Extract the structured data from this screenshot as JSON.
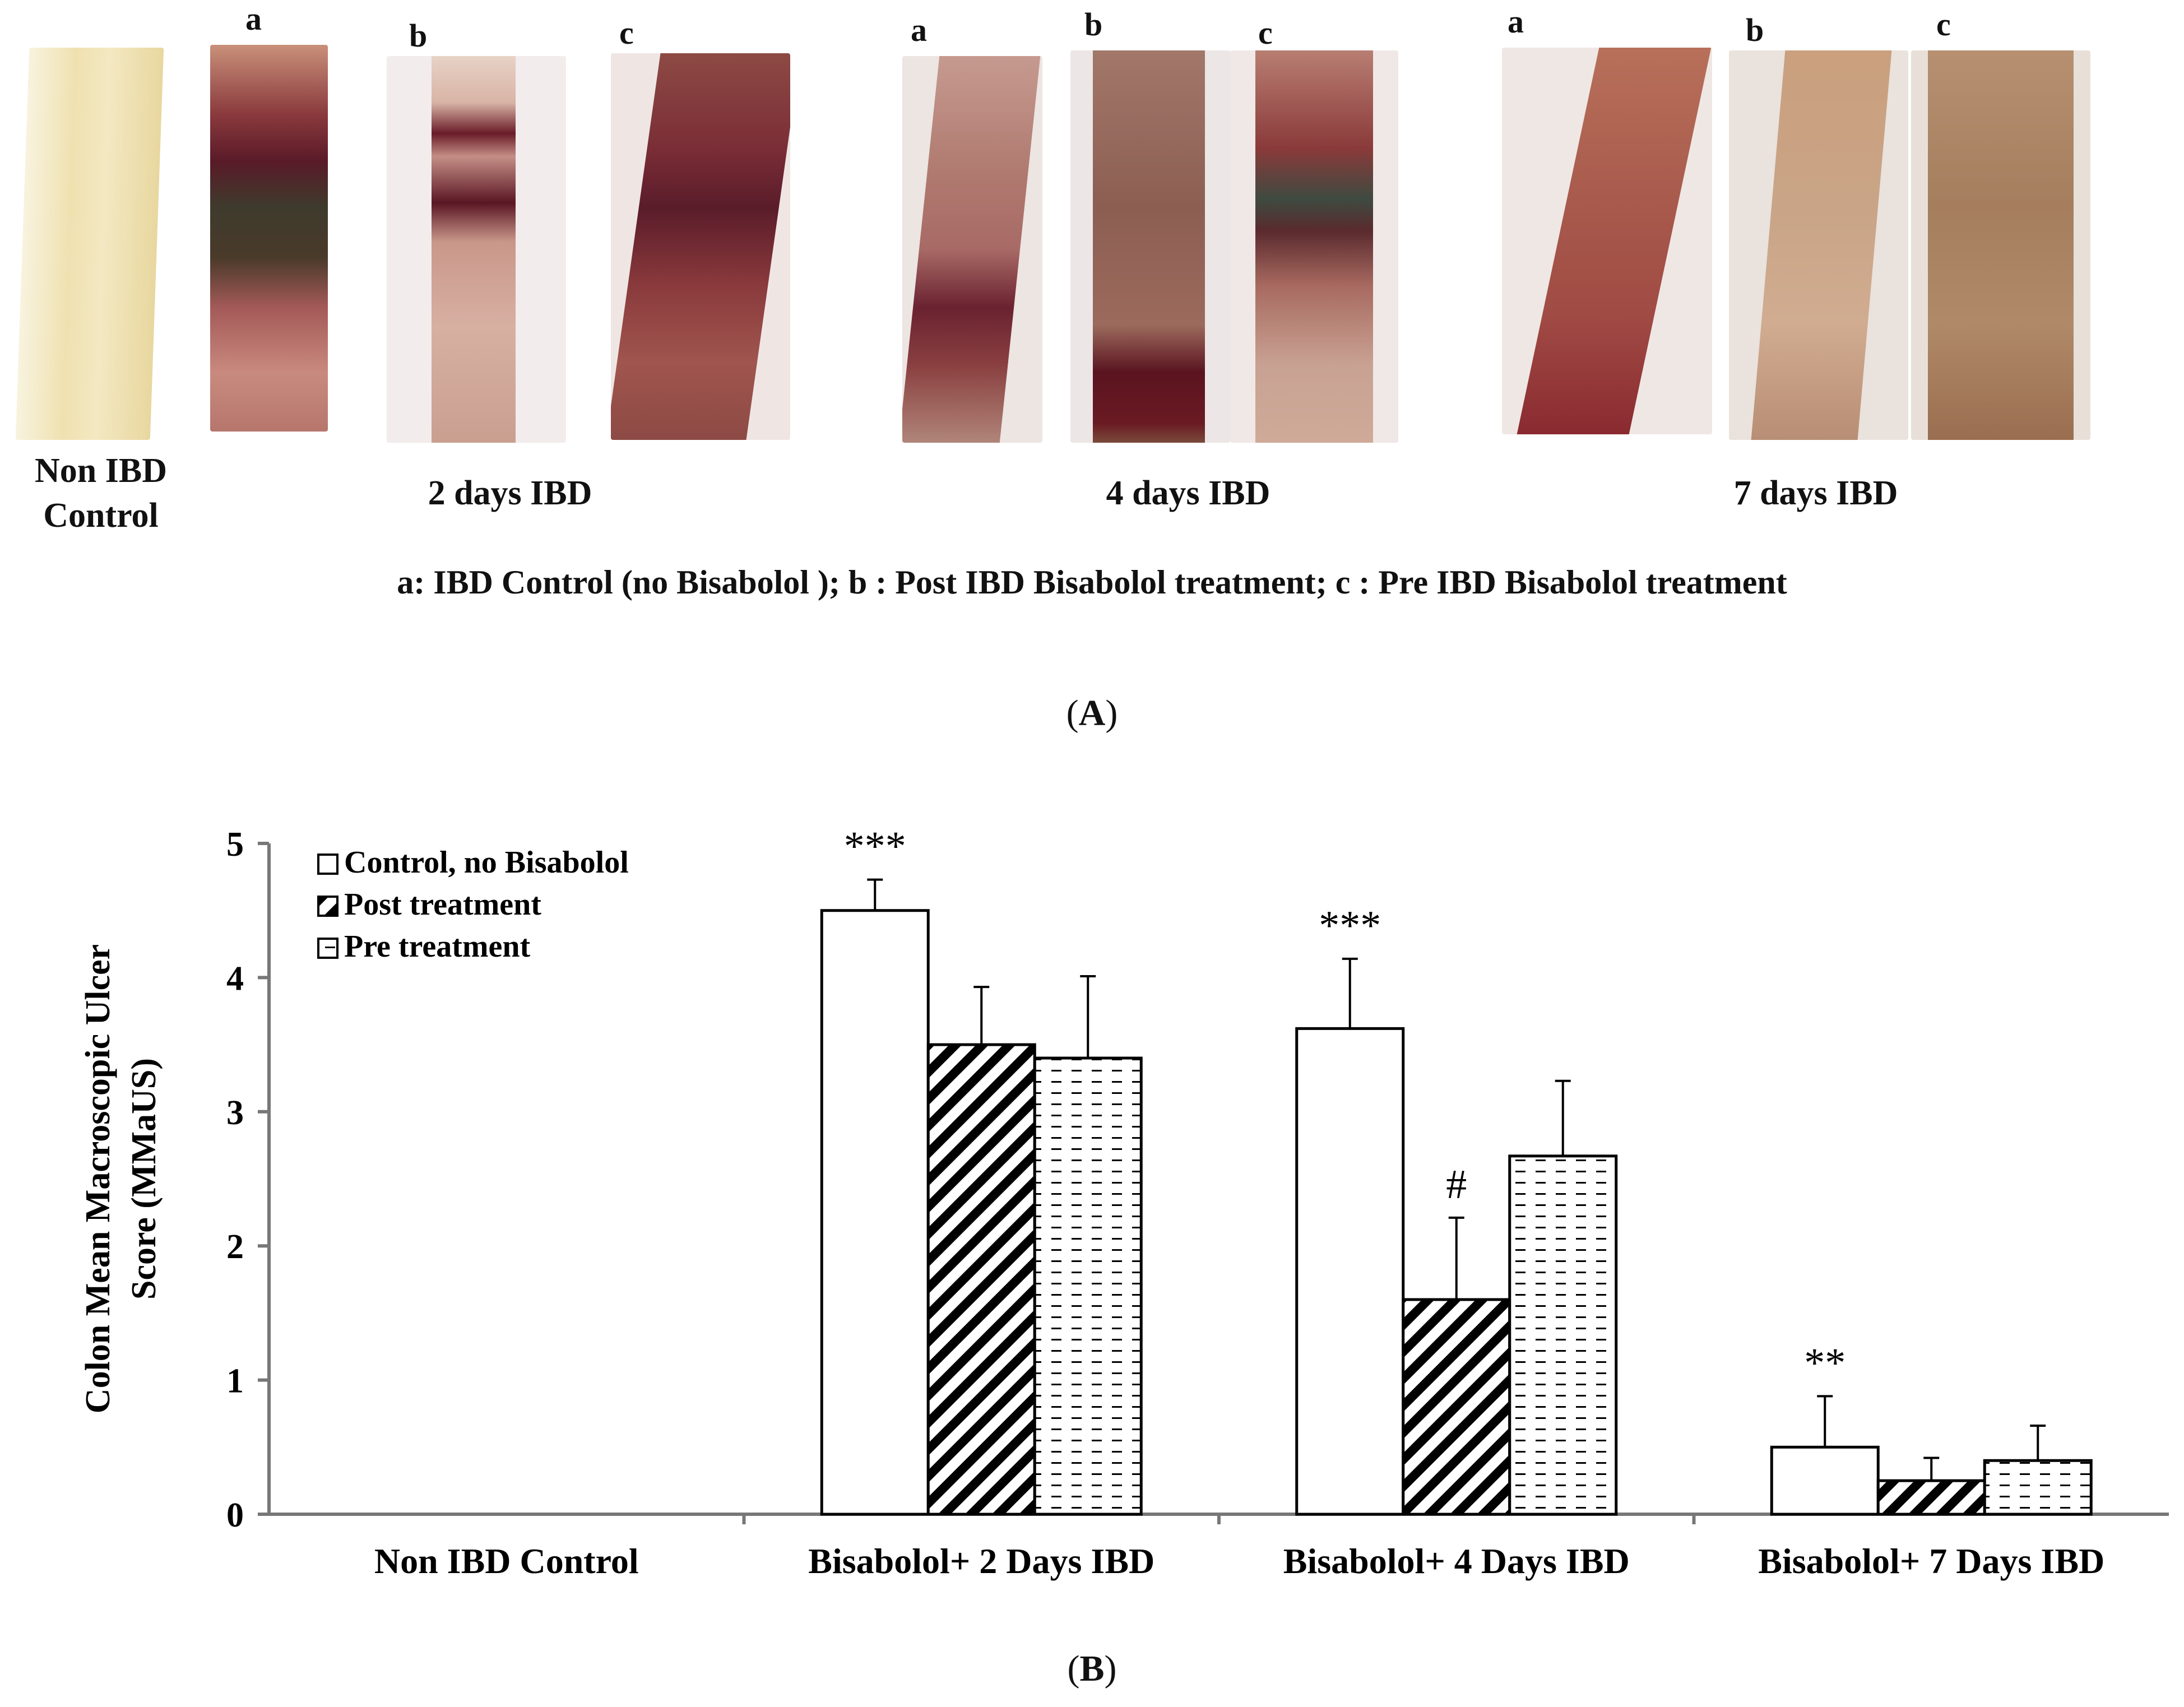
{
  "panel_a": {
    "label_letter": "A",
    "photo_letters": [
      "a",
      "b",
      "c"
    ],
    "control_label": [
      "Non IBD",
      "Control"
    ],
    "group_titles": [
      "2 days IBD",
      "4 days IBD",
      "7 days IBD"
    ],
    "legend_text": "a:  IBD Control (no Bisabolol );  b : Post IBD Bisabolol treatment;  c : Pre IBD Bisabolol treatment"
  },
  "panel_b_label": "B",
  "chart_data": {
    "type": "bar",
    "title": "",
    "ylabel_lines": [
      "Colon Mean Macroscopic Ulcer",
      "Score (MMaUS)"
    ],
    "xlabel": "",
    "ylim": [
      0,
      5
    ],
    "yticks": [
      "0",
      "1",
      "2",
      "3",
      "4",
      "5"
    ],
    "categories": [
      "Non IBD Control",
      "Bisabolol+ 2 Days IBD",
      "Bisabolol+ 4 Days IBD",
      "Bisabolol+ 7 Days IBD"
    ],
    "legend_position": "top-left",
    "series": [
      {
        "name": "Control, no Bisabolol",
        "pattern": "open",
        "values": [
          0,
          4.5,
          3.62,
          0.5
        ],
        "errors": [
          0,
          0.23,
          0.52,
          0.38
        ]
      },
      {
        "name": "Post treatment",
        "pattern": "diagonal",
        "values": [
          0,
          3.5,
          1.6,
          0.25
        ],
        "errors": [
          0,
          0.43,
          0.61,
          0.17
        ]
      },
      {
        "name": "Pre treatment",
        "pattern": "dashed",
        "values": [
          0,
          3.4,
          2.67,
          0.4
        ],
        "errors": [
          0,
          0.61,
          0.56,
          0.26
        ]
      }
    ],
    "annotations": [
      {
        "series": 0,
        "category": 1,
        "text": "***"
      },
      {
        "series": 0,
        "category": 2,
        "text": "***"
      },
      {
        "series": 1,
        "category": 2,
        "text": "#"
      },
      {
        "series": 0,
        "category": 3,
        "text": "**"
      }
    ]
  },
  "colors": {
    "bar_outline": "#000000",
    "tissue_control": "#efe3b4",
    "tissue_red": "#8a2f36",
    "tissue_dark": "#4a1a24",
    "tissue_ulcer": "#3d3b2e",
    "tissue_pale": "#d9b9a2"
  }
}
